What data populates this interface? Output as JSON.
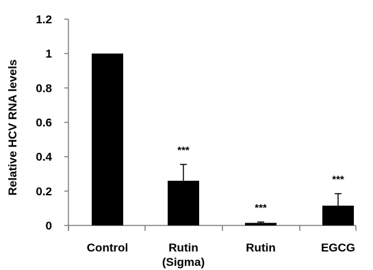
{
  "chart_data": {
    "type": "bar",
    "title": "",
    "xlabel": "",
    "ylabel": "Relative HCV RNA levels",
    "ylim": [
      0,
      1.2
    ],
    "yticks": [
      "0",
      "0.2",
      "0.4",
      "0.6",
      "0.8",
      "1",
      "1.2"
    ],
    "yticks_values": [
      0,
      0.2,
      0.4,
      0.6,
      0.8,
      1.0,
      1.2
    ],
    "categories": [
      [
        "Control"
      ],
      [
        "Rutin",
        "(Sigma)"
      ],
      [
        "Rutin"
      ],
      [
        "EGCG"
      ]
    ],
    "values": [
      1.0,
      0.26,
      0.015,
      0.115
    ],
    "errors": [
      0,
      0.095,
      0.005,
      0.07
    ],
    "significance": [
      "",
      "***",
      "***",
      "***"
    ],
    "bar_color": "#000000",
    "grid": false,
    "legend": "none"
  }
}
